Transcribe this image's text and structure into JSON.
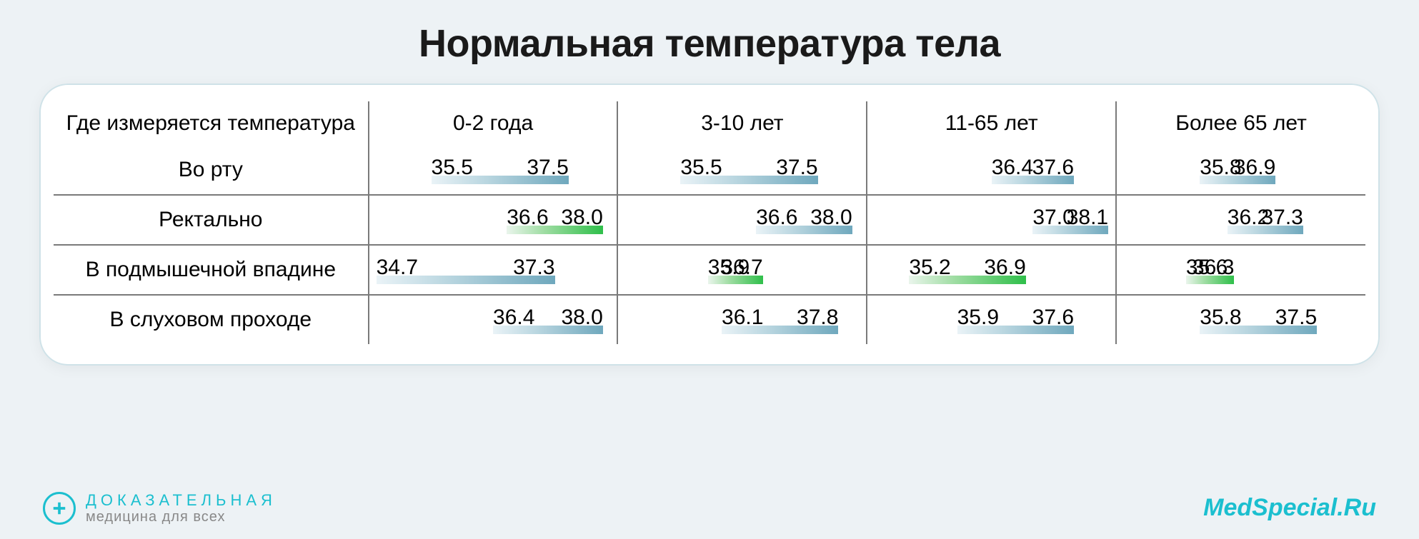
{
  "title": "Нормальная температура тела",
  "title_fontsize": 54,
  "header_fontsize": 30,
  "rowlabel_fontsize": 30,
  "value_fontsize": 30,
  "domain_min": 34.7,
  "domain_max": 38.1,
  "bar_colors": {
    "blue": "blue",
    "green": "green"
  },
  "columns": [
    {
      "label": "Где измеряется температура",
      "width_pct": 24
    },
    {
      "label": "0-2 года",
      "width_pct": 19
    },
    {
      "label": "3-10 лет",
      "width_pct": 19
    },
    {
      "label": "11-65 лет",
      "width_pct": 19
    },
    {
      "label": "Более 65 лет",
      "width_pct": 19
    }
  ],
  "rows": [
    {
      "label": "Во рту",
      "cells": [
        {
          "min": 35.5,
          "max": 37.5,
          "color": "blue"
        },
        {
          "min": 35.5,
          "max": 37.5,
          "color": "blue"
        },
        {
          "min": 36.4,
          "max": 37.6,
          "color": "blue"
        },
        {
          "min": 35.8,
          "max": 36.9,
          "color": "blue"
        }
      ]
    },
    {
      "label": "Ректально",
      "cells": [
        {
          "min": 36.6,
          "max": 38.0,
          "color": "green"
        },
        {
          "min": 36.6,
          "max": 38.0,
          "color": "blue"
        },
        {
          "min": 37.0,
          "max": 38.1,
          "color": "blue"
        },
        {
          "min": 36.2,
          "max": 37.3,
          "color": "blue"
        }
      ]
    },
    {
      "label": "В подмышечной впадине",
      "cells": [
        {
          "min": 34.7,
          "max": 37.3,
          "color": "blue"
        },
        {
          "min": 35.9,
          "max": 36.7,
          "color": "green"
        },
        {
          "min": 35.2,
          "max": 36.9,
          "color": "green"
        },
        {
          "min": 35.6,
          "max": 36.3,
          "color": "green"
        }
      ]
    },
    {
      "label": "В слуховом проходе",
      "cells": [
        {
          "min": 36.4,
          "max": 38.0,
          "color": "blue"
        },
        {
          "min": 36.1,
          "max": 37.8,
          "color": "blue"
        },
        {
          "min": 35.9,
          "max": 37.6,
          "color": "blue"
        },
        {
          "min": 35.8,
          "max": 37.5,
          "color": "blue"
        }
      ]
    }
  ],
  "footer": {
    "brand_line1": "ДОКАЗАТЕЛЬНАЯ",
    "brand_line2": "медицина для всех",
    "brand_line1_fontsize": 22,
    "brand_line2_fontsize": 20,
    "site": "MedSpecial.Ru",
    "site_fontsize": 34,
    "accent_color": "#1bbfcf"
  }
}
